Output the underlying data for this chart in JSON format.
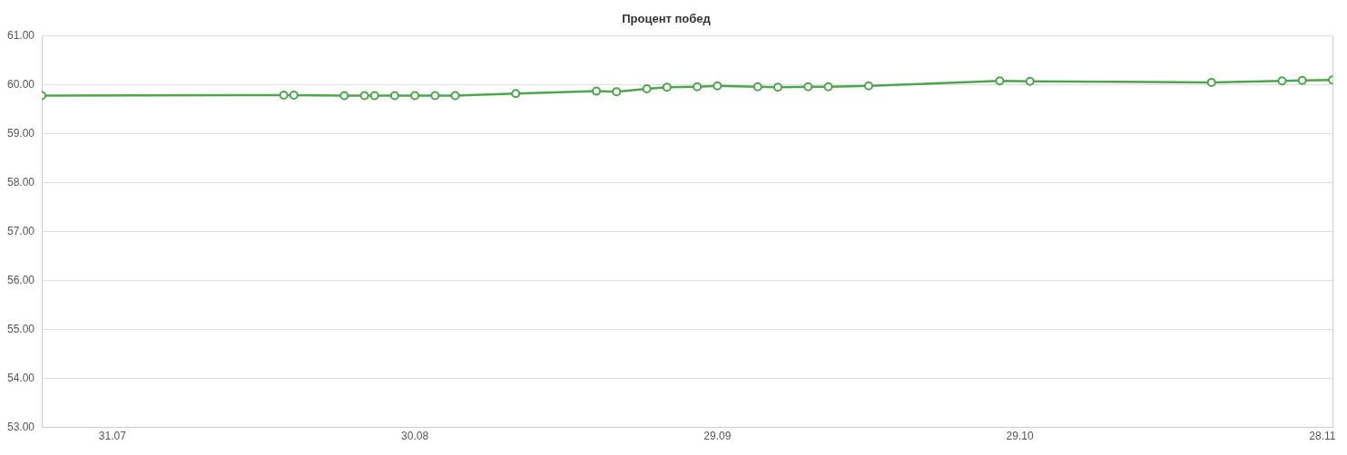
{
  "chart_data": {
    "type": "line",
    "title": "Процент побед",
    "x": [
      "--07-24",
      "--08-17",
      "--08-18",
      "--08-23",
      "--08-25",
      "--08-26",
      "--08-28",
      "--08-30",
      "--09-01",
      "--09-03",
      "--09-09",
      "--09-17",
      "--09-19",
      "--09-22",
      "--09-24",
      "--09-27",
      "--09-29",
      "--10-03",
      "--10-05",
      "--10-08",
      "--10-10",
      "--10-14",
      "--10-27",
      "--10-30",
      "--11-17",
      "--11-24",
      "--11-26",
      "--11-29"
    ],
    "series": [
      {
        "color": "#4da64d",
        "values": [
          59.78,
          59.79,
          59.79,
          59.78,
          59.78,
          59.78,
          59.78,
          59.78,
          59.78,
          59.78,
          59.82,
          59.87,
          59.86,
          59.92,
          59.95,
          59.96,
          59.98,
          59.96,
          59.95,
          59.96,
          59.96,
          59.98,
          60.08,
          60.07,
          60.05,
          60.08,
          60.09,
          60.1
        ]
      }
    ],
    "xlim": [
      "--07-24",
      "--11-29"
    ],
    "xticks": [
      {
        "value": "--07-31",
        "label": "31.07"
      },
      {
        "value": "--08-30",
        "label": "30.08"
      },
      {
        "value": "--09-29",
        "label": "29.09"
      },
      {
        "value": "--10-29",
        "label": "29.10"
      },
      {
        "value": "--11-28",
        "label": "28.11"
      }
    ],
    "ylim": [
      53,
      61
    ],
    "yticks": [
      {
        "value": 53,
        "label": "53.00"
      },
      {
        "value": 54,
        "label": "54.00"
      },
      {
        "value": 55,
        "label": "55.00"
      },
      {
        "value": 56,
        "label": "56.00"
      },
      {
        "value": 57,
        "label": "57.00"
      },
      {
        "value": 58,
        "label": "58.00"
      },
      {
        "value": 59,
        "label": "59.00"
      },
      {
        "value": 60,
        "label": "60.00"
      },
      {
        "value": 61,
        "label": "61.00"
      }
    ],
    "grid": "y",
    "legend": false,
    "marker": "circle",
    "line_style": "solid"
  }
}
